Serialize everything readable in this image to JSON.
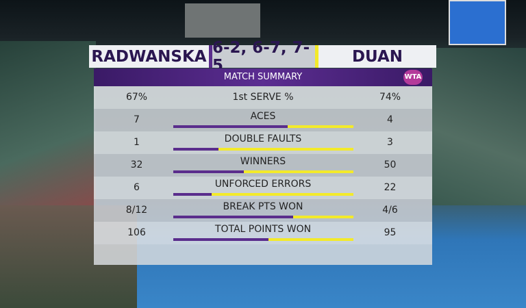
{
  "header": {
    "player1": "RADWANSKA",
    "score": "6-2, 6-7, 7-5",
    "player2": "DUAN"
  },
  "panel": {
    "title": "MATCH SUMMARY",
    "logo": "WTA"
  },
  "stats": [
    {
      "label": "1st SERVE %",
      "left": "67%",
      "right": "74%"
    },
    {
      "label": "ACES",
      "left": 7,
      "right": 4
    },
    {
      "label": "DOUBLE FAULTS",
      "left": 1,
      "right": 3
    },
    {
      "label": "WINNERS",
      "left": 32,
      "right": 50
    },
    {
      "label": "UNFORCED ERRORS",
      "left": 6,
      "right": 22
    },
    {
      "label": "BREAK PTS WON",
      "left": {
        "value": 8,
        "label": "8/12"
      },
      "right": {
        "value": 4,
        "label": "4/6"
      }
    },
    {
      "label": "TOTAL POINTS WON",
      "left": 106,
      "right": 95
    }
  ]
}
